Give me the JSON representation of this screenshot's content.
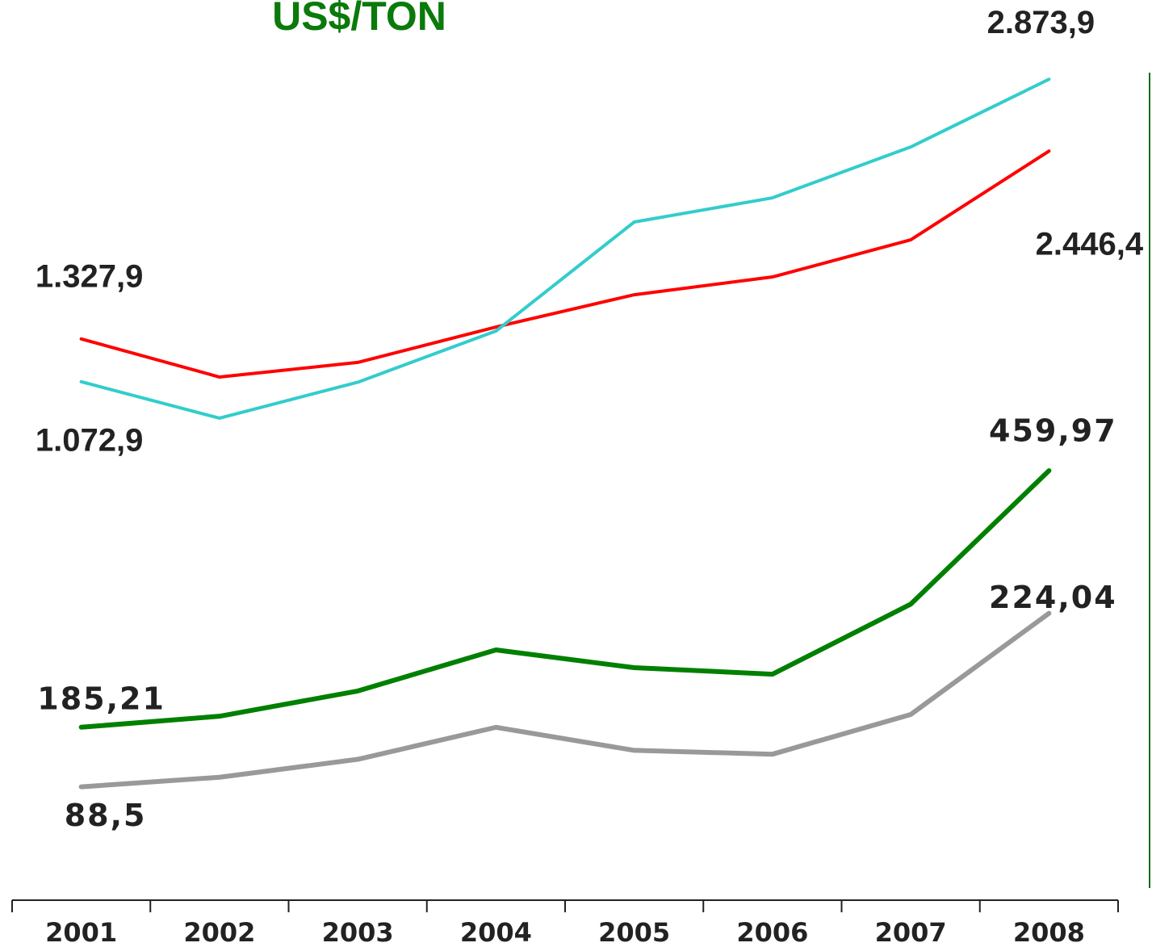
{
  "chart_data": {
    "type": "line",
    "title": "US$/TON",
    "categories": [
      "2001",
      "2002",
      "2003",
      "2004",
      "2005",
      "2006",
      "2007",
      "2008"
    ],
    "ylim": [
      -2014,
      3346
    ],
    "y2lim": [
      0,
      964
    ],
    "y3lim": [
      0,
      703
    ],
    "series": [
      {
        "name": null,
        "color": "#ff0000",
        "values": [
          1327.9,
          1101,
          1188,
          1399,
          1591,
          1697,
          1918,
          2446.4
        ],
        "value_labels": [
          "1.327,9",
          null,
          null,
          null,
          null,
          null,
          null,
          "2.446,4"
        ]
      },
      {
        "name": null,
        "color": "#33cccc",
        "values": [
          1072.9,
          856,
          1070,
          1375,
          2024,
          2168,
          2471,
          2873.9
        ],
        "value_labels": [
          "1.072,9",
          null,
          null,
          null,
          null,
          null,
          null,
          "2.873,9"
        ]
      },
      {
        "name": null,
        "color": "#008000",
        "axis": "y2",
        "values": [
          185.21,
          197,
          224,
          268,
          249,
          242,
          317,
          459.97
        ],
        "value_labels": [
          "185,21",
          null,
          null,
          null,
          null,
          null,
          null,
          "459,97"
        ]
      },
      {
        "name": null,
        "color": "#999999",
        "axis": "y3",
        "values": [
          88.5,
          96,
          110,
          135,
          117,
          114,
          145,
          224.04
        ],
        "value_labels": [
          "88,5",
          null,
          null,
          null,
          null,
          null,
          null,
          "224,04"
        ]
      }
    ]
  }
}
